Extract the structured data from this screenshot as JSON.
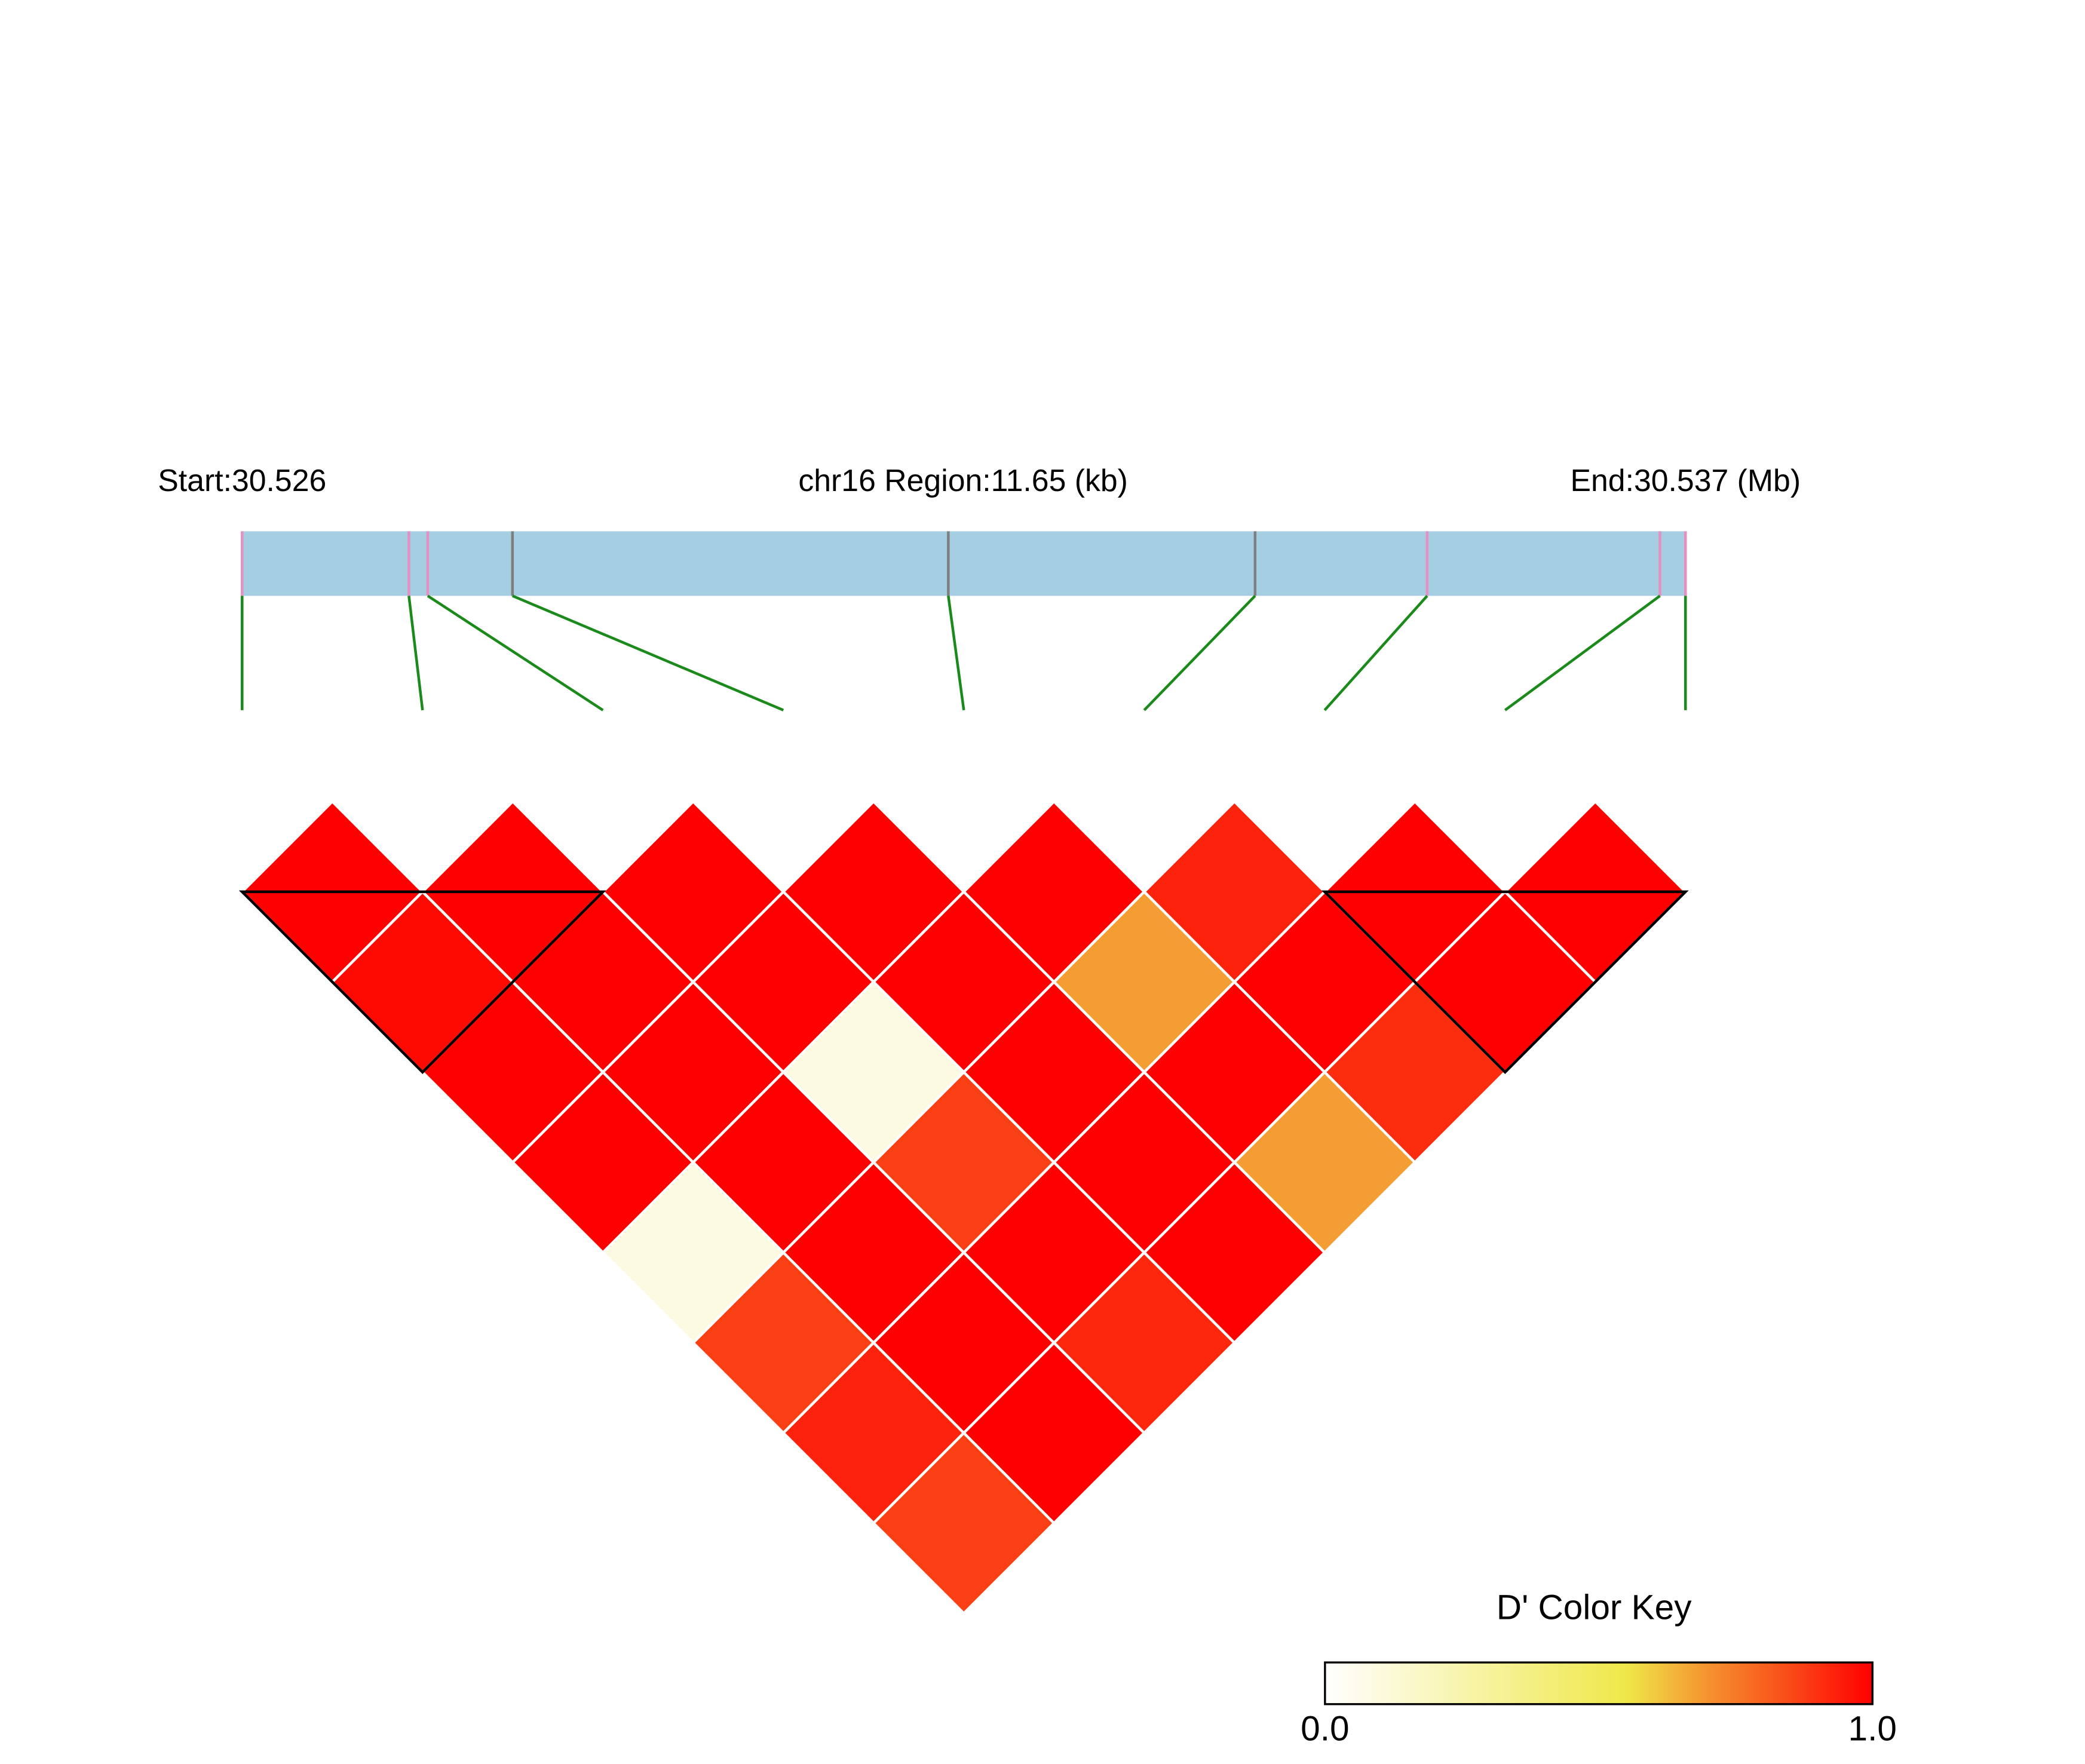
{
  "chart_data": {
    "type": "ld-heatmap",
    "start_label": "Start:30.526",
    "region_label": "chr16 Region:11.65 (kb)",
    "end_label": "End:30.537 (Mb)",
    "region_kb": 11.65,
    "snp_positions_kb": [
      0,
      1.346,
      1.498,
      2.182,
      5.7,
      8.176,
      9.565,
      11.444,
      11.65
    ],
    "snp_colors": [
      "#e58fc3",
      "#e58fc3",
      "#e58fc3",
      "#7f7f7f",
      "#7f7f7f",
      "#7f7f7f",
      "#e58fc3",
      "#e58fc3",
      "#e58fc3"
    ],
    "bar_color": "#a6cee3",
    "connector_color": "#1a8a1a",
    "dprime": [
      [
        1,
        0.98,
        1,
        1,
        0.09,
        0.87,
        0.93,
        0.87
      ],
      [
        1,
        1,
        1,
        1,
        1,
        1,
        1
      ],
      [
        1,
        1,
        0.09,
        0.87,
        1,
        0.92
      ],
      [
        1,
        1,
        1,
        1,
        1
      ],
      [
        1,
        0.68,
        1,
        0.68
      ],
      [
        0.93,
        1,
        0.91
      ],
      [
        1,
        1
      ],
      [
        1
      ]
    ],
    "blocks": [
      [
        0,
        2
      ],
      [
        6,
        8
      ]
    ],
    "colorscale": [
      {
        "value": 0,
        "color": "#ffffff"
      },
      {
        "value": 0.55,
        "color": "#efe84a"
      },
      {
        "value": 0.7,
        "color": "#f5922f"
      },
      {
        "value": 1,
        "color": "#ff0000"
      }
    ],
    "key_title": "D' Color Key",
    "key_ticks": [
      {
        "value": 0,
        "label": "0.0"
      },
      {
        "value": 1,
        "label": "1.0"
      }
    ]
  }
}
